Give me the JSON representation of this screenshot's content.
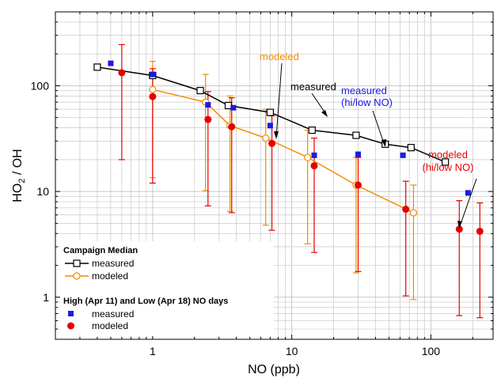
{
  "chart_data": {
    "type": "scatter",
    "title": "",
    "xlabel": "NO (ppb)",
    "ylabel": "HO2 / OH",
    "xscale": "log",
    "yscale": "log",
    "xlim": [
      0.2,
      280
    ],
    "ylim": [
      0.4,
      500
    ],
    "x_ticks": [
      {
        "value": 1,
        "label": "1"
      },
      {
        "value": 10,
        "label": "10"
      },
      {
        "value": 100,
        "label": "100"
      }
    ],
    "y_ticks": [
      {
        "value": 1,
        "label": "1"
      },
      {
        "value": 10,
        "label": "10"
      },
      {
        "value": 100,
        "label": "100"
      }
    ],
    "grid": true,
    "legend": {
      "position": "bottom-left",
      "groups": [
        {
          "title": "Campaign Median",
          "entries": [
            "measured",
            "modeled"
          ]
        },
        {
          "title": "High (Apr 11) and Low (Apr 18) NO days",
          "entries": [
            "measured",
            "modeled"
          ]
        }
      ]
    },
    "series": [
      {
        "name": "Campaign Median measured",
        "color": "#000000",
        "marker": "open-square",
        "line": true,
        "points": [
          {
            "x": 0.4,
            "y": 150
          },
          {
            "x": 1.0,
            "y": 125
          },
          {
            "x": 2.2,
            "y": 90
          },
          {
            "x": 3.5,
            "y": 65
          },
          {
            "x": 7.0,
            "y": 56
          },
          {
            "x": 14.0,
            "y": 38
          },
          {
            "x": 29.0,
            "y": 34
          },
          {
            "x": 47.0,
            "y": 28
          },
          {
            "x": 72.0,
            "y": 26
          },
          {
            "x": 127.0,
            "y": 19
          }
        ]
      },
      {
        "name": "Campaign Median modeled",
        "color": "#F28C00",
        "marker": "open-circle",
        "line": true,
        "points": [
          {
            "x": 1.0,
            "y": 92,
            "lo": 13.5,
            "hi": 170
          },
          {
            "x": 2.4,
            "y": 70,
            "lo": 10.2,
            "hi": 128
          },
          {
            "x": 3.6,
            "y": 42,
            "lo": 6.5,
            "hi": 80
          },
          {
            "x": 6.5,
            "y": 32,
            "lo": 4.8,
            "hi": 60
          },
          {
            "x": 13.0,
            "y": 21,
            "lo": 3.2,
            "hi": 38
          },
          {
            "x": 29.0,
            "y": 11.5,
            "lo": 1.7,
            "hi": 21
          },
          {
            "x": 75.0,
            "y": 6.3,
            "lo": 0.95,
            "hi": 11.5
          }
        ]
      },
      {
        "name": "High (Apr 11) and Low (Apr 18) NO days measured",
        "color": "#1A1AE6",
        "marker": "filled-square",
        "line": false,
        "points": [
          {
            "x": 0.5,
            "y": 163
          },
          {
            "x": 1.0,
            "y": 128
          },
          {
            "x": 2.5,
            "y": 66
          },
          {
            "x": 3.8,
            "y": 62
          },
          {
            "x": 7.0,
            "y": 42
          },
          {
            "x": 14.5,
            "y": 22
          },
          {
            "x": 30.0,
            "y": 22.5
          },
          {
            "x": 63.0,
            "y": 22
          },
          {
            "x": 185.0,
            "y": 9.7
          }
        ]
      },
      {
        "name": "High (Apr 11) and Low (Apr 18) NO days modeled",
        "color": "#E60000",
        "marker": "filled-circle",
        "line": false,
        "points": [
          {
            "x": 0.6,
            "y": 133,
            "lo": 20,
            "hi": 245
          },
          {
            "x": 1.0,
            "y": 79,
            "lo": 12,
            "hi": 145
          },
          {
            "x": 2.5,
            "y": 48,
            "lo": 7.3,
            "hi": 88
          },
          {
            "x": 3.7,
            "y": 41,
            "lo": 6.3,
            "hi": 77
          },
          {
            "x": 7.2,
            "y": 28.5,
            "lo": 4.3,
            "hi": 52
          },
          {
            "x": 14.5,
            "y": 17.5,
            "lo": 2.65,
            "hi": 32
          },
          {
            "x": 30.0,
            "y": 11.5,
            "lo": 1.75,
            "hi": 21
          },
          {
            "x": 66.0,
            "y": 6.8,
            "lo": 1.03,
            "hi": 12.5
          },
          {
            "x": 160.0,
            "y": 4.4,
            "lo": 0.67,
            "hi": 8.2
          },
          {
            "x": 225.0,
            "y": 4.2,
            "lo": 0.64,
            "hi": 7.8
          }
        ]
      }
    ],
    "annotations": [
      {
        "text": "modeled",
        "color": "#F28C00"
      },
      {
        "text": "measured",
        "color": "#000000"
      },
      {
        "text": "measured (hi/low NO)",
        "color": "#1A1AE6"
      },
      {
        "text": "modeled (hi/low NO)",
        "color": "#E60000"
      }
    ]
  }
}
